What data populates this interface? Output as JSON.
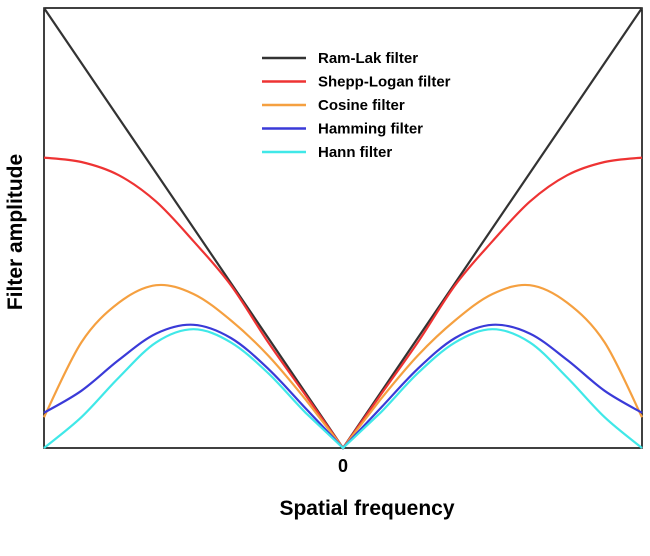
{
  "chart_data": {
    "type": "line",
    "xlabel": "Spatial frequency",
    "ylabel": "Filter amplitude",
    "x_ticks": [
      {
        "value": 0,
        "label": "0"
      }
    ],
    "xlim": [
      -1,
      1
    ],
    "ylim": [
      0,
      1
    ],
    "grid": false,
    "legend_position": "top-center",
    "series": [
      {
        "name": "Ram-Lak filter",
        "color": "#333333",
        "x": [
          -1,
          -0.875,
          -0.75,
          -0.625,
          -0.5,
          -0.375,
          -0.25,
          -0.125,
          0,
          0.125,
          0.25,
          0.375,
          0.5,
          0.625,
          0.75,
          0.875,
          1
        ],
        "y": [
          1.0,
          0.875,
          0.75,
          0.625,
          0.5,
          0.375,
          0.25,
          0.125,
          0.0,
          0.125,
          0.25,
          0.375,
          0.5,
          0.625,
          0.75,
          0.875,
          1.0
        ]
      },
      {
        "name": "Shepp-Logan filter",
        "color": "#ee3333",
        "x": [
          -1,
          -0.875,
          -0.75,
          -0.625,
          -0.5,
          -0.375,
          -0.25,
          -0.125,
          0,
          0.125,
          0.25,
          0.375,
          0.5,
          0.625,
          0.75,
          0.875,
          1
        ],
        "y": [
          0.66,
          0.65,
          0.62,
          0.56,
          0.47,
          0.37,
          0.24,
          0.12,
          0.0,
          0.12,
          0.24,
          0.37,
          0.47,
          0.56,
          0.62,
          0.65,
          0.66
        ]
      },
      {
        "name": "Cosine filter",
        "color": "#f5a040",
        "x": [
          -1,
          -0.875,
          -0.75,
          -0.625,
          -0.5,
          -0.375,
          -0.25,
          -0.125,
          0,
          0.125,
          0.25,
          0.375,
          0.5,
          0.625,
          0.75,
          0.875,
          1
        ],
        "y": [
          0.07,
          0.24,
          0.33,
          0.37,
          0.35,
          0.29,
          0.21,
          0.11,
          0.0,
          0.11,
          0.21,
          0.29,
          0.35,
          0.37,
          0.33,
          0.24,
          0.07
        ]
      },
      {
        "name": "Hamming filter",
        "color": "#3a3ad8",
        "x": [
          -1,
          -0.875,
          -0.75,
          -0.625,
          -0.5,
          -0.375,
          -0.25,
          -0.125,
          0,
          0.125,
          0.25,
          0.375,
          0.5,
          0.625,
          0.75,
          0.875,
          1
        ],
        "y": [
          0.08,
          0.13,
          0.2,
          0.26,
          0.28,
          0.25,
          0.18,
          0.09,
          0.0,
          0.09,
          0.18,
          0.25,
          0.28,
          0.26,
          0.2,
          0.13,
          0.08
        ]
      },
      {
        "name": "Hann filter",
        "color": "#40e8e8",
        "x": [
          -1,
          -0.875,
          -0.75,
          -0.625,
          -0.5,
          -0.375,
          -0.25,
          -0.125,
          0,
          0.125,
          0.25,
          0.375,
          0.5,
          0.625,
          0.75,
          0.875,
          1
        ],
        "y": [
          0.0,
          0.07,
          0.16,
          0.24,
          0.27,
          0.24,
          0.17,
          0.08,
          0.0,
          0.08,
          0.17,
          0.24,
          0.27,
          0.24,
          0.16,
          0.07,
          0.0
        ]
      }
    ]
  }
}
